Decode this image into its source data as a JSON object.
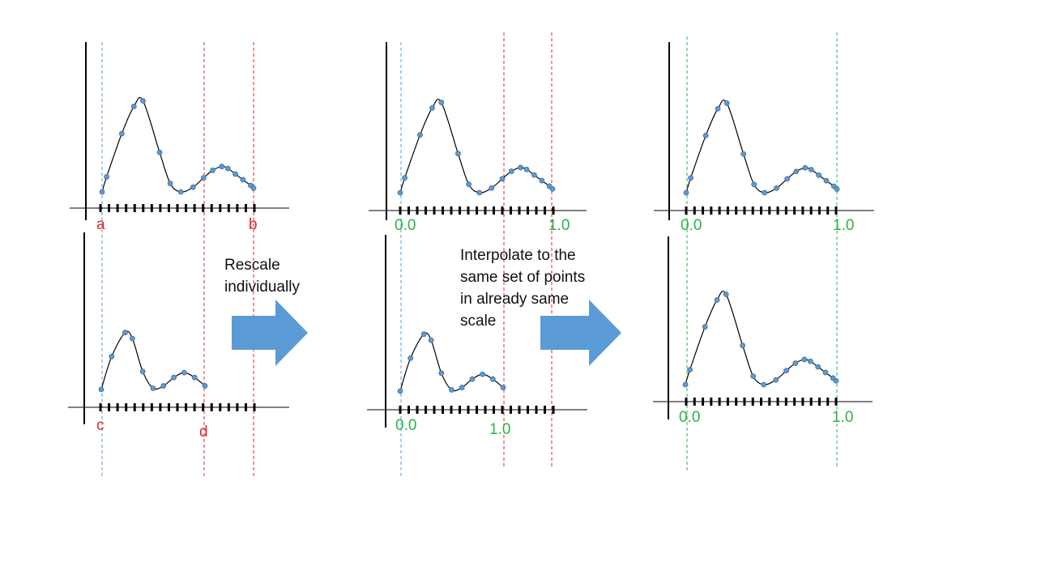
{
  "colors": {
    "blue_guide": "#5b9bd5",
    "red_guide": "#e8242a",
    "green_guide": "#2ab34b",
    "point_fill": "#5b9bd5",
    "point_stroke": "#41719c",
    "arrow_fill": "#5b9bd5",
    "axis": "#000000",
    "curve": "#000000"
  },
  "captions": {
    "rescale": [
      "Rescale",
      "individually"
    ],
    "interpolate": [
      "Interpolate to the",
      "same set of points",
      "in already same",
      "scale"
    ]
  },
  "labels": {
    "raw_top_start": "a",
    "raw_top_end": "b",
    "raw_bottom_start": "c",
    "raw_bottom_end": "d",
    "scaled_top_start": "0.0",
    "scaled_top_end": "1.0",
    "scaled_bottom_start": "0.0",
    "scaled_bottom_end": "1.0",
    "final_top_start": "0.0",
    "final_top_end": "1.0",
    "final_bottom_start": "0.0",
    "final_bottom_end": "1.0"
  },
  "icons": {
    "step1_arrow": "right-arrow-icon",
    "step2_arrow": "right-arrow-icon"
  }
}
